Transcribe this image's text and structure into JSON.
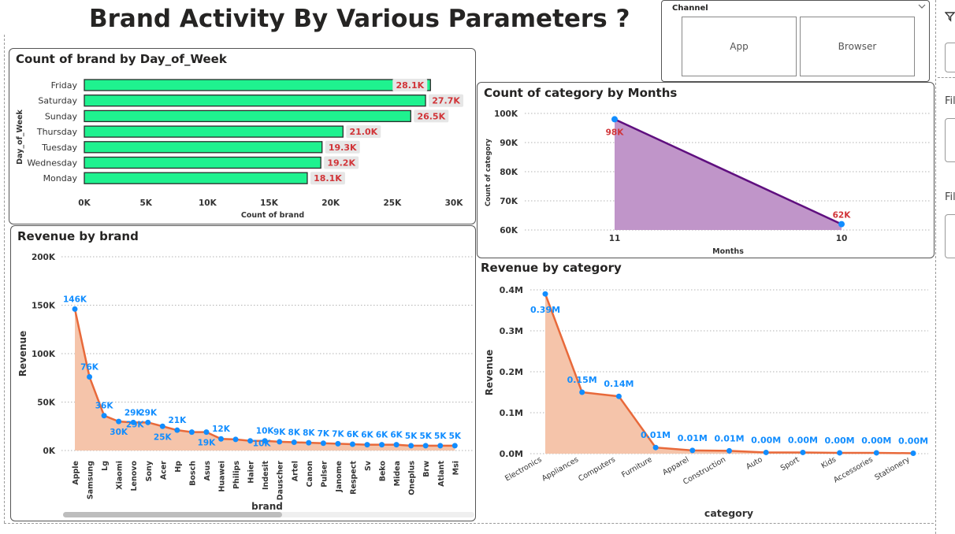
{
  "page": {
    "title": "Brand Activity By Various Parameters ?"
  },
  "slicer": {
    "title": "Channel",
    "options": [
      "App",
      "Browser"
    ]
  },
  "side_panel": {
    "labels": [
      "Fil",
      "Fil"
    ]
  },
  "colors": {
    "bar_fill": "#1ff28f",
    "bar_border": "#2b2b2b",
    "label_red": "#d13438",
    "label_bg": "#e6e6e6",
    "area_purple": "#c095c9",
    "line_purple": "#5f0f7f",
    "point_blue": "#118dff",
    "area_salmon": "#f5c4aa",
    "line_orange": "#e8693a",
    "label_blue": "#118dff"
  },
  "chart_data": [
    {
      "type": "bar",
      "title": "Count of brand by Day_of_Week",
      "xlabel": "Count of brand",
      "ylabel": "Day_of_Week",
      "categories": [
        "Friday",
        "Saturday",
        "Sunday",
        "Thursday",
        "Tuesday",
        "Wednesday",
        "Monday"
      ],
      "values": [
        28100,
        27700,
        26500,
        21000,
        19300,
        19200,
        18100
      ],
      "data_labels": [
        "28.1K",
        "27.7K",
        "26.5K",
        "21.0K",
        "19.3K",
        "19.2K",
        "18.1K"
      ],
      "xlim": [
        0,
        30000
      ],
      "xticks": [
        "0K",
        "5K",
        "10K",
        "15K",
        "20K",
        "25K",
        "30K"
      ]
    },
    {
      "type": "area",
      "title": "Count of category by Months",
      "xlabel": "Months",
      "ylabel": "Count of category",
      "categories": [
        "11",
        "10"
      ],
      "values": [
        98000,
        62000
      ],
      "data_labels": [
        "98K",
        "62K"
      ],
      "ylim": [
        60000,
        100000
      ],
      "yticks": [
        "60K",
        "70K",
        "80K",
        "90K",
        "100K"
      ]
    },
    {
      "type": "area",
      "title": "Revenue by brand",
      "xlabel": "brand",
      "ylabel": "Revenue",
      "categories": [
        "Apple",
        "Samsung",
        "Lg",
        "Xiaomi",
        "Lenovo",
        "Sony",
        "Acer",
        "Hp",
        "Bosch",
        "Asus",
        "Huawei",
        "Philips",
        "Haier",
        "Indesit",
        "Dauscher",
        "Artel",
        "Canon",
        "Pulser",
        "Janome",
        "Respect",
        "Sv",
        "Beko",
        "Midea",
        "Oneplus",
        "Brw",
        "Atlant",
        "Msi"
      ],
      "values": [
        146000,
        76000,
        36000,
        30000,
        29000,
        29000,
        25000,
        21000,
        19000,
        19000,
        12000,
        11500,
        10000,
        10000,
        9000,
        8500,
        8000,
        7500,
        7000,
        6500,
        6000,
        6000,
        6000,
        5000,
        5000,
        5000,
        5000
      ],
      "data_labels": [
        "146K",
        "76K",
        "36K",
        "30K",
        "29K",
        "29K",
        "25K",
        "21K",
        "",
        "19K",
        "12K",
        "",
        "",
        "10K",
        "9K",
        "8K",
        "8K",
        "7K",
        "7K",
        "6K",
        "6K",
        "6K",
        "6K",
        "5K",
        "5K",
        "5K",
        "5K"
      ],
      "extra_label": "10K",
      "ylim": [
        0,
        200000
      ],
      "yticks": [
        "0K",
        "50K",
        "100K",
        "150K",
        "200K"
      ]
    },
    {
      "type": "area",
      "title": "Revenue by category",
      "xlabel": "category",
      "ylabel": "Revenue",
      "categories": [
        "Electronics",
        "Appliances",
        "Computers",
        "Furniture",
        "Apparel",
        "Construction",
        "Auto",
        "Sport",
        "Kids",
        "Accessories",
        "Stationery"
      ],
      "values": [
        0.39,
        0.15,
        0.14,
        0.015,
        0.008,
        0.007,
        0.003,
        0.003,
        0.002,
        0.002,
        0.001
      ],
      "data_labels": [
        "0.39M",
        "0.15M",
        "0.14M",
        "0.01M",
        "0.01M",
        "0.01M",
        "0.00M",
        "0.00M",
        "0.00M",
        "0.00M",
        "0.00M"
      ],
      "ylim": [
        0,
        0.4
      ],
      "yticks": [
        "0.0M",
        "0.1M",
        "0.2M",
        "0.3M",
        "0.4M"
      ]
    }
  ]
}
